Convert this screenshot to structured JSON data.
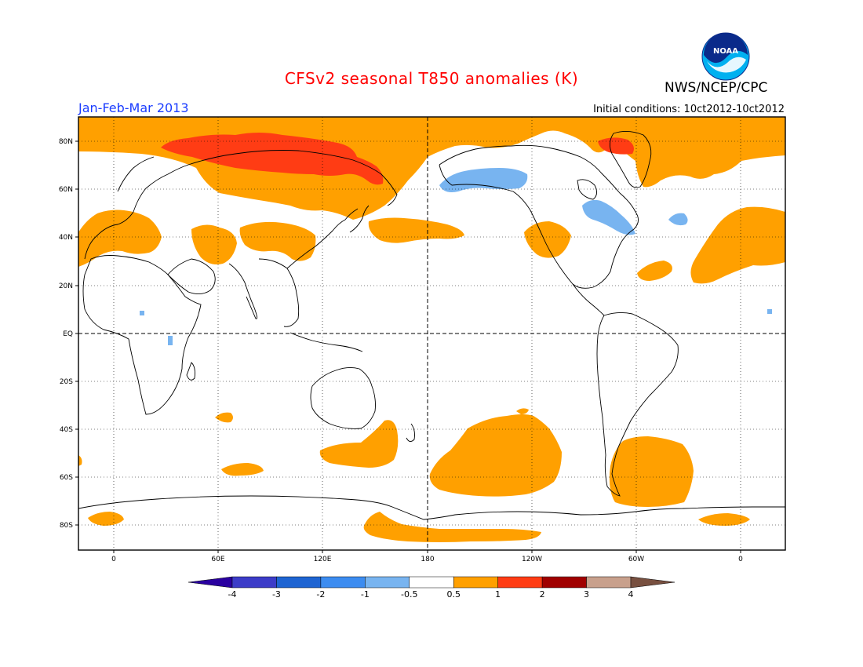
{
  "title": "CFSv2 seasonal T850 anomalies (K)",
  "organization": "NWS/NCEP/CPC",
  "period": "Jan-Feb-Mar 2013",
  "initial_conditions": "Initial conditions: 10ct2012-10ct2012",
  "logo_text": "NOAA",
  "lat_labels": [
    "80N",
    "60N",
    "40N",
    "20N",
    "EQ",
    "20S",
    "40S",
    "60S",
    "80S"
  ],
  "lon_labels": [
    "0",
    "60E",
    "120E",
    "180",
    "120W",
    "60W",
    "0"
  ],
  "colorbar": {
    "labels": [
      "-4",
      "-3",
      "-2",
      "-1",
      "-0.5",
      "0.5",
      "1",
      "2",
      "3",
      "4"
    ],
    "colors": [
      "#2a00a0",
      "#3c3cc8",
      "#1e64d2",
      "#3c8cf0",
      "#78b4f0",
      "#ffffff",
      "#ffa000",
      "#ff3c14",
      "#a00000",
      "#c8a08c",
      "#785040"
    ]
  },
  "colors": {
    "warm_0_5_1": "#ffa000",
    "warm_1_2": "#ff3c14",
    "cool_m1_m0_5": "#78b4f0"
  }
}
